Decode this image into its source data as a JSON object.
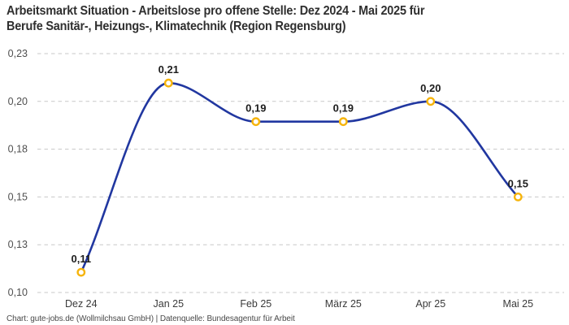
{
  "header": {
    "title_lines": [
      "Arbeitsmarkt Situation - Arbeitslose pro offene Stelle: Dez 2024 - Mai 2025 für",
      "Berufe Sanitär-, Heizungs-, Klimatechnik (Region Regensburg)"
    ]
  },
  "footer": {
    "text": "Chart: gute-jobs.de (Wollmilchsau GmbH) | Datenquelle: Bundesagentur für Arbeit"
  },
  "chart_data": {
    "type": "line",
    "title": "Arbeitsmarkt Situation - Arbeitslose pro offene Stelle: Dez 2024 - Mai 2025 für Berufe Sanitär-, Heizungs-, Klimatechnik (Region Regensburg)",
    "categories": [
      "Dez 24",
      "Jan 25",
      "Feb 25",
      "März 25",
      "Apr 25",
      "Mai 25"
    ],
    "values": [
      0.11,
      0.21,
      0.19,
      0.19,
      0.2,
      0.15
    ],
    "point_labels": [
      "0,11",
      "0,21",
      "0,19",
      "0,19",
      "0,20",
      "0,15"
    ],
    "plot_values": [
      0.111,
      0.214,
      0.193,
      0.193,
      0.204,
      0.152
    ],
    "xlabel": "",
    "ylabel": "",
    "ylim": [
      0.1,
      0.23
    ],
    "y_axis": {
      "min": 0.1,
      "max": 0.23,
      "ticks": [
        {
          "value": 0.23,
          "label": "0,23"
        },
        {
          "value": 0.204,
          "label": "0,20"
        },
        {
          "value": 0.178,
          "label": "0,18"
        },
        {
          "value": 0.152,
          "label": "0,15"
        },
        {
          "value": 0.126,
          "label": "0,13"
        },
        {
          "value": 0.1,
          "label": "0,10"
        }
      ]
    },
    "grid": "horizontal-dashed",
    "legend": "none",
    "colors": {
      "line": "#2137A0",
      "marker_stroke": "#F6B40B",
      "marker_fill": "#FFFFFF",
      "gridline": "#C8C8C8"
    }
  }
}
